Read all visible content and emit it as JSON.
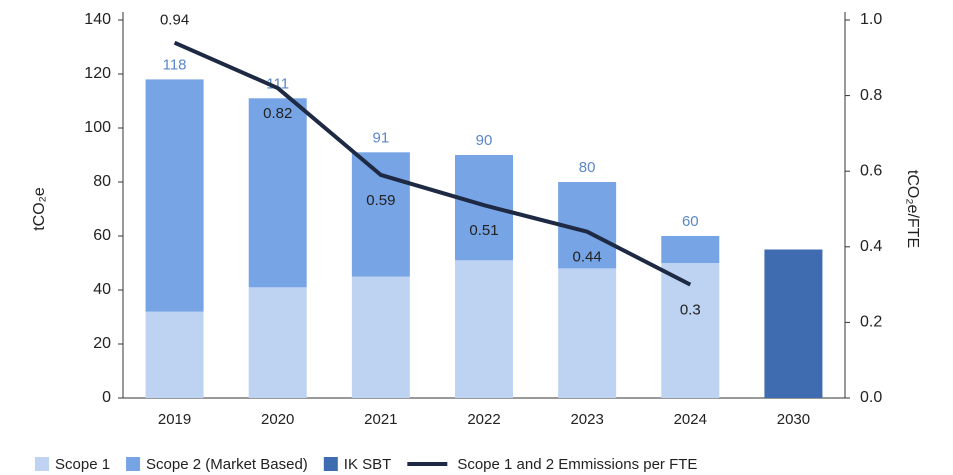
{
  "chart_data": {
    "type": "bar",
    "categories": [
      "2019",
      "2020",
      "2021",
      "2022",
      "2023",
      "2024",
      "2030"
    ],
    "series": [
      {
        "name": "Scope 1",
        "color": "#bdd3f1",
        "values": [
          32,
          41,
          45,
          51,
          48,
          50,
          null
        ]
      },
      {
        "name": "Scope 2 (Market Based)",
        "color": "#77a4e4",
        "values": [
          86,
          70,
          46,
          39,
          32,
          10,
          null
        ]
      },
      {
        "name": "IK SBT",
        "color": "#3f6bb0",
        "values": [
          null,
          null,
          null,
          null,
          null,
          null,
          55
        ]
      },
      {
        "name": "Scope 1 and 2 Emmissions per FTE",
        "color": "#1e2a44",
        "type": "line",
        "axis": "y2",
        "values": [
          0.94,
          0.82,
          0.59,
          0.51,
          0.44,
          0.3,
          null
        ]
      }
    ],
    "totals": [
      118,
      111,
      91,
      90,
      80,
      60,
      null
    ],
    "ylabel": "tCO₂e",
    "y2label": "tCO₂e/FTE",
    "ylim": [
      0,
      140
    ],
    "yticks": [
      0,
      20,
      40,
      60,
      80,
      100,
      120,
      140
    ],
    "y2lim": [
      0,
      1
    ],
    "y2ticks": [
      {
        "value": 0,
        "label": "0.0"
      },
      0.2,
      0.4,
      0.6,
      0.8,
      {
        "value": 1,
        "label": "1.0"
      }
    ],
    "legend": "bottom"
  }
}
